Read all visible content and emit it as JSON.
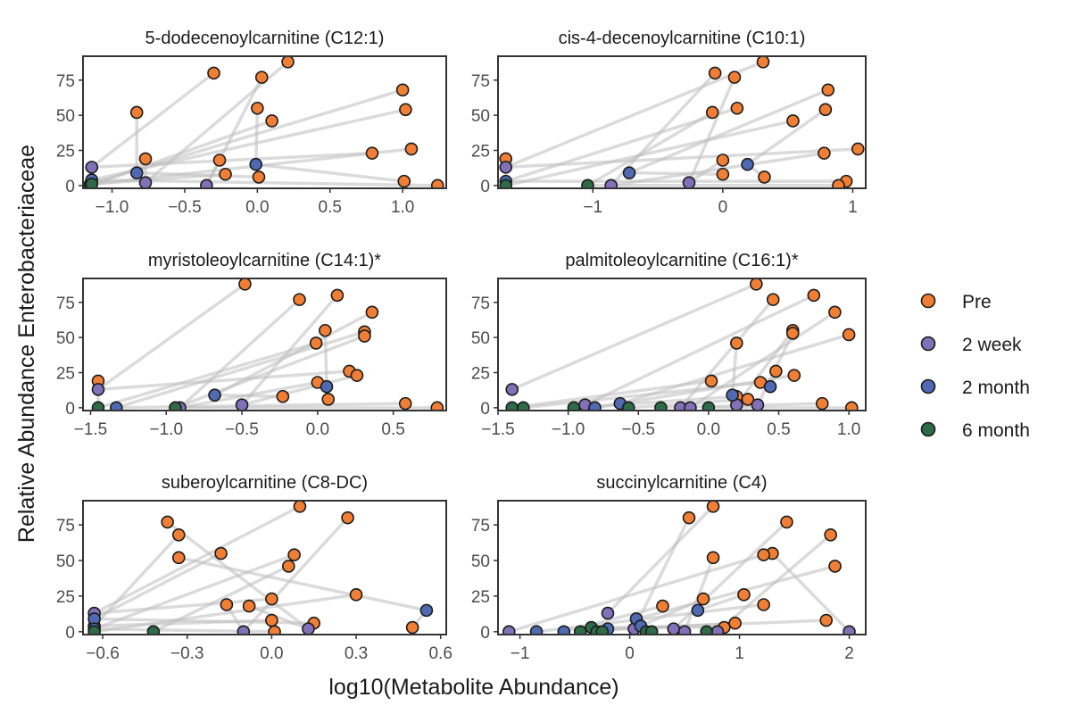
{
  "figure": {
    "xlabel": "log10(Metabolite Abundance)",
    "ylabel": "Relative Abundance Enterobacteriaceae"
  },
  "legend": {
    "placement": "right",
    "items": [
      {
        "label": "Pre",
        "color": "#F07F35"
      },
      {
        "label": "2 week",
        "color": "#8270B8"
      },
      {
        "label": "2 month",
        "color": "#4F6AB3"
      },
      {
        "label": "6 month",
        "color": "#2E6B48"
      }
    ]
  },
  "chart_data": [
    {
      "type": "scatter",
      "title": "5-dodecenoylcarnitine (C12:1)",
      "xlim": [
        -1.2,
        1.3
      ],
      "ylim": [
        -2,
        92
      ],
      "xticks": [
        -1.0,
        -0.5,
        0.0,
        0.5,
        1.0
      ],
      "xtick_labels": [
        "−1.0",
        "−0.5",
        "0.0",
        "0.5",
        "1.0"
      ],
      "yticks": [
        0,
        25,
        50,
        75
      ],
      "points": [
        {
          "x": -0.3,
          "y": 80,
          "group": "Pre"
        },
        {
          "x": 0.21,
          "y": 88,
          "group": "Pre"
        },
        {
          "x": 0.03,
          "y": 77,
          "group": "Pre"
        },
        {
          "x": 1.0,
          "y": 68,
          "group": "Pre"
        },
        {
          "x": -0.83,
          "y": 52,
          "group": "Pre"
        },
        {
          "x": 0.0,
          "y": 55,
          "group": "Pre"
        },
        {
          "x": 1.02,
          "y": 54,
          "group": "Pre"
        },
        {
          "x": 0.1,
          "y": 46,
          "group": "Pre"
        },
        {
          "x": 1.06,
          "y": 26,
          "group": "Pre"
        },
        {
          "x": 0.79,
          "y": 23,
          "group": "Pre"
        },
        {
          "x": -0.77,
          "y": 19,
          "group": "Pre"
        },
        {
          "x": -0.26,
          "y": 18,
          "group": "Pre"
        },
        {
          "x": -0.22,
          "y": 8,
          "group": "Pre"
        },
        {
          "x": 0.01,
          "y": 6,
          "group": "Pre"
        },
        {
          "x": 1.01,
          "y": 3,
          "group": "Pre"
        },
        {
          "x": 1.24,
          "y": 0,
          "group": "Pre"
        },
        {
          "x": -1.14,
          "y": 13,
          "group": "2 week"
        },
        {
          "x": -0.77,
          "y": 2,
          "group": "2 week"
        },
        {
          "x": -0.35,
          "y": 0,
          "group": "2 week"
        },
        {
          "x": -1.15,
          "y": 1,
          "group": "2 week"
        },
        {
          "x": -0.83,
          "y": 9,
          "group": "2 month"
        },
        {
          "x": -0.01,
          "y": 15,
          "group": "2 month"
        },
        {
          "x": -1.14,
          "y": 4,
          "group": "2 month"
        },
        {
          "x": -1.15,
          "y": 0,
          "group": "6 month"
        },
        {
          "x": -1.14,
          "y": 1,
          "group": "6 month"
        }
      ]
    },
    {
      "type": "scatter",
      "title": "cis-4-decenoylcarnitine (C10:1)",
      "xlim": [
        -1.73,
        1.1
      ],
      "ylim": [
        -2,
        92
      ],
      "xticks": [
        -1,
        0,
        1
      ],
      "xtick_labels": [
        "−1",
        "0",
        "1"
      ],
      "yticks": [
        0,
        25,
        50,
        75
      ],
      "points": [
        {
          "x": 0.31,
          "y": 88,
          "group": "Pre"
        },
        {
          "x": -0.06,
          "y": 80,
          "group": "Pre"
        },
        {
          "x": 0.09,
          "y": 77,
          "group": "Pre"
        },
        {
          "x": 0.81,
          "y": 68,
          "group": "Pre"
        },
        {
          "x": 0.79,
          "y": 54,
          "group": "Pre"
        },
        {
          "x": 0.11,
          "y": 55,
          "group": "Pre"
        },
        {
          "x": -0.08,
          "y": 52,
          "group": "Pre"
        },
        {
          "x": 0.54,
          "y": 46,
          "group": "Pre"
        },
        {
          "x": 1.04,
          "y": 26,
          "group": "Pre"
        },
        {
          "x": 0.78,
          "y": 23,
          "group": "Pre"
        },
        {
          "x": 0.0,
          "y": 18,
          "group": "Pre"
        },
        {
          "x": 0.0,
          "y": 8,
          "group": "Pre"
        },
        {
          "x": 0.32,
          "y": 6,
          "group": "Pre"
        },
        {
          "x": 0.95,
          "y": 3,
          "group": "Pre"
        },
        {
          "x": 0.89,
          "y": 0,
          "group": "Pre"
        },
        {
          "x": -1.67,
          "y": 19,
          "group": "Pre"
        },
        {
          "x": -1.67,
          "y": 13,
          "group": "2 week"
        },
        {
          "x": -0.86,
          "y": 0,
          "group": "2 week"
        },
        {
          "x": -0.26,
          "y": 2,
          "group": "2 week"
        },
        {
          "x": -0.72,
          "y": 9,
          "group": "2 month"
        },
        {
          "x": 0.19,
          "y": 15,
          "group": "2 month"
        },
        {
          "x": -1.67,
          "y": 3,
          "group": "2 month"
        },
        {
          "x": -1.04,
          "y": 0,
          "group": "6 month"
        },
        {
          "x": -1.67,
          "y": 0,
          "group": "6 month"
        }
      ]
    },
    {
      "type": "scatter",
      "title": "myristoleoylcarnitine (C14:1)*",
      "xlim": [
        -1.55,
        0.85
      ],
      "ylim": [
        -2,
        92
      ],
      "xticks": [
        -1.5,
        -1.0,
        -0.5,
        0.0,
        0.5
      ],
      "xtick_labels": [
        "−1.5",
        "−1.0",
        "−0.5",
        "0.0",
        "0.5"
      ],
      "yticks": [
        0,
        25,
        50,
        75
      ],
      "points": [
        {
          "x": -0.48,
          "y": 88,
          "group": "Pre"
        },
        {
          "x": 0.13,
          "y": 80,
          "group": "Pre"
        },
        {
          "x": -0.12,
          "y": 77,
          "group": "Pre"
        },
        {
          "x": 0.36,
          "y": 68,
          "group": "Pre"
        },
        {
          "x": 0.05,
          "y": 55,
          "group": "Pre"
        },
        {
          "x": 0.31,
          "y": 54,
          "group": "Pre"
        },
        {
          "x": 0.31,
          "y": 51,
          "group": "Pre"
        },
        {
          "x": -0.01,
          "y": 46,
          "group": "Pre"
        },
        {
          "x": 0.21,
          "y": 26,
          "group": "Pre"
        },
        {
          "x": 0.26,
          "y": 23,
          "group": "Pre"
        },
        {
          "x": 0.0,
          "y": 18,
          "group": "Pre"
        },
        {
          "x": -0.23,
          "y": 8,
          "group": "Pre"
        },
        {
          "x": 0.07,
          "y": 6,
          "group": "Pre"
        },
        {
          "x": 0.58,
          "y": 3,
          "group": "Pre"
        },
        {
          "x": 0.79,
          "y": 0,
          "group": "Pre"
        },
        {
          "x": -1.45,
          "y": 19,
          "group": "Pre"
        },
        {
          "x": -1.45,
          "y": 13,
          "group": "2 week"
        },
        {
          "x": -0.5,
          "y": 2,
          "group": "2 week"
        },
        {
          "x": -0.91,
          "y": 0,
          "group": "2 week"
        },
        {
          "x": -0.68,
          "y": 9,
          "group": "2 month"
        },
        {
          "x": 0.06,
          "y": 15,
          "group": "2 month"
        },
        {
          "x": -1.33,
          "y": 0,
          "group": "2 month"
        },
        {
          "x": -0.94,
          "y": 0,
          "group": "6 month"
        },
        {
          "x": -1.45,
          "y": 0,
          "group": "6 month"
        }
      ]
    },
    {
      "type": "scatter",
      "title": "palmitoleoylcarnitine (C16:1)*",
      "xlim": [
        -1.5,
        1.12
      ],
      "ylim": [
        -2,
        92
      ],
      "xticks": [
        -1.5,
        -1.0,
        -0.5,
        0.0,
        0.5,
        1.0
      ],
      "xtick_labels": [
        "−1.5",
        "−1.0",
        "−0.5",
        "0.0",
        "0.5",
        "1.0"
      ],
      "yticks": [
        0,
        25,
        50,
        75
      ],
      "points": [
        {
          "x": 0.34,
          "y": 88,
          "group": "Pre"
        },
        {
          "x": 0.75,
          "y": 80,
          "group": "Pre"
        },
        {
          "x": 0.46,
          "y": 77,
          "group": "Pre"
        },
        {
          "x": 0.9,
          "y": 68,
          "group": "Pre"
        },
        {
          "x": 0.6,
          "y": 55,
          "group": "Pre"
        },
        {
          "x": 0.6,
          "y": 53,
          "group": "Pre"
        },
        {
          "x": 1.0,
          "y": 52,
          "group": "Pre"
        },
        {
          "x": 0.2,
          "y": 46,
          "group": "Pre"
        },
        {
          "x": 0.48,
          "y": 26,
          "group": "Pre"
        },
        {
          "x": 0.61,
          "y": 23,
          "group": "Pre"
        },
        {
          "x": 0.02,
          "y": 19,
          "group": "Pre"
        },
        {
          "x": 0.37,
          "y": 18,
          "group": "Pre"
        },
        {
          "x": 0.2,
          "y": 8,
          "group": "Pre"
        },
        {
          "x": 0.28,
          "y": 6,
          "group": "Pre"
        },
        {
          "x": 0.81,
          "y": 3,
          "group": "Pre"
        },
        {
          "x": 1.02,
          "y": 0,
          "group": "Pre"
        },
        {
          "x": -1.4,
          "y": 13,
          "group": "2 week"
        },
        {
          "x": -0.88,
          "y": 2,
          "group": "2 week"
        },
        {
          "x": -0.2,
          "y": 0,
          "group": "2 week"
        },
        {
          "x": -0.13,
          "y": 0,
          "group": "2 week"
        },
        {
          "x": 0.2,
          "y": 2,
          "group": "2 week"
        },
        {
          "x": 0.35,
          "y": 2,
          "group": "2 week"
        },
        {
          "x": -0.63,
          "y": 3,
          "group": "2 month"
        },
        {
          "x": 0.17,
          "y": 9,
          "group": "2 month"
        },
        {
          "x": 0.44,
          "y": 15,
          "group": "2 month"
        },
        {
          "x": -0.81,
          "y": 0,
          "group": "2 month"
        },
        {
          "x": -1.4,
          "y": 0,
          "group": "6 month"
        },
        {
          "x": -1.32,
          "y": 0,
          "group": "6 month"
        },
        {
          "x": -0.96,
          "y": 0,
          "group": "6 month"
        },
        {
          "x": -0.57,
          "y": 0,
          "group": "6 month"
        },
        {
          "x": -0.34,
          "y": 0,
          "group": "6 month"
        },
        {
          "x": 0.0,
          "y": 0,
          "group": "6 month"
        }
      ]
    },
    {
      "type": "scatter",
      "title": "suberoylcarnitine (C8-DC)",
      "xlim": [
        -0.67,
        0.62
      ],
      "ylim": [
        -2,
        92
      ],
      "xticks": [
        -0.6,
        -0.3,
        0.0,
        0.3,
        0.6
      ],
      "xtick_labels": [
        "−0.6",
        "−0.3",
        "0.0",
        "0.3",
        "0.6"
      ],
      "yticks": [
        0,
        25,
        50,
        75
      ],
      "points": [
        {
          "x": 0.1,
          "y": 88,
          "group": "Pre"
        },
        {
          "x": 0.27,
          "y": 80,
          "group": "Pre"
        },
        {
          "x": -0.37,
          "y": 77,
          "group": "Pre"
        },
        {
          "x": -0.33,
          "y": 68,
          "group": "Pre"
        },
        {
          "x": -0.18,
          "y": 55,
          "group": "Pre"
        },
        {
          "x": -0.33,
          "y": 52,
          "group": "Pre"
        },
        {
          "x": 0.08,
          "y": 54,
          "group": "Pre"
        },
        {
          "x": 0.06,
          "y": 46,
          "group": "Pre"
        },
        {
          "x": 0.3,
          "y": 26,
          "group": "Pre"
        },
        {
          "x": 0.0,
          "y": 23,
          "group": "Pre"
        },
        {
          "x": -0.16,
          "y": 19,
          "group": "Pre"
        },
        {
          "x": -0.08,
          "y": 18,
          "group": "Pre"
        },
        {
          "x": 0.0,
          "y": 8,
          "group": "Pre"
        },
        {
          "x": 0.15,
          "y": 6,
          "group": "Pre"
        },
        {
          "x": 0.5,
          "y": 3,
          "group": "Pre"
        },
        {
          "x": 0.01,
          "y": 0,
          "group": "Pre"
        },
        {
          "x": -0.63,
          "y": 13,
          "group": "2 week"
        },
        {
          "x": -0.1,
          "y": 0,
          "group": "2 week"
        },
        {
          "x": 0.13,
          "y": 2,
          "group": "2 week"
        },
        {
          "x": -0.63,
          "y": 4,
          "group": "2 week"
        },
        {
          "x": -0.63,
          "y": 9,
          "group": "2 month"
        },
        {
          "x": 0.55,
          "y": 15,
          "group": "2 month"
        },
        {
          "x": -0.63,
          "y": 2,
          "group": "2 month"
        },
        {
          "x": -0.42,
          "y": 0,
          "group": "6 month"
        },
        {
          "x": -0.63,
          "y": 0,
          "group": "6 month"
        }
      ]
    },
    {
      "type": "scatter",
      "title": "succinylcarnitine (C4)",
      "xlim": [
        -1.2,
        2.15
      ],
      "ylim": [
        -2,
        92
      ],
      "xticks": [
        -1,
        0,
        1,
        2
      ],
      "xtick_labels": [
        "−1",
        "0",
        "1",
        "2"
      ],
      "yticks": [
        0,
        25,
        50,
        75
      ],
      "points": [
        {
          "x": 0.76,
          "y": 88,
          "group": "Pre"
        },
        {
          "x": 0.54,
          "y": 80,
          "group": "Pre"
        },
        {
          "x": 1.43,
          "y": 77,
          "group": "Pre"
        },
        {
          "x": 1.83,
          "y": 68,
          "group": "Pre"
        },
        {
          "x": 1.3,
          "y": 55,
          "group": "Pre"
        },
        {
          "x": 1.22,
          "y": 54,
          "group": "Pre"
        },
        {
          "x": 0.76,
          "y": 52,
          "group": "Pre"
        },
        {
          "x": 1.87,
          "y": 46,
          "group": "Pre"
        },
        {
          "x": 1.04,
          "y": 26,
          "group": "Pre"
        },
        {
          "x": 0.67,
          "y": 23,
          "group": "Pre"
        },
        {
          "x": 1.22,
          "y": 19,
          "group": "Pre"
        },
        {
          "x": 0.3,
          "y": 18,
          "group": "Pre"
        },
        {
          "x": 1.79,
          "y": 8,
          "group": "Pre"
        },
        {
          "x": 0.96,
          "y": 6,
          "group": "Pre"
        },
        {
          "x": 0.86,
          "y": 3,
          "group": "Pre"
        },
        {
          "x": -0.2,
          "y": 13,
          "group": "2 week"
        },
        {
          "x": 0.04,
          "y": 2,
          "group": "2 week"
        },
        {
          "x": 0.4,
          "y": 2,
          "group": "2 week"
        },
        {
          "x": 0.8,
          "y": 0,
          "group": "2 week"
        },
        {
          "x": 2.0,
          "y": 0,
          "group": "2 week"
        },
        {
          "x": -1.1,
          "y": 0,
          "group": "2 week"
        },
        {
          "x": 0.5,
          "y": 0,
          "group": "2 week"
        },
        {
          "x": 0.06,
          "y": 9,
          "group": "2 month"
        },
        {
          "x": 0.62,
          "y": 15,
          "group": "2 month"
        },
        {
          "x": 0.1,
          "y": 4,
          "group": "2 month"
        },
        {
          "x": -0.85,
          "y": 0,
          "group": "2 month"
        },
        {
          "x": -0.6,
          "y": 0,
          "group": "2 month"
        },
        {
          "x": -0.2,
          "y": 2,
          "group": "2 month"
        },
        {
          "x": -0.45,
          "y": 0,
          "group": "6 month"
        },
        {
          "x": -0.35,
          "y": 3,
          "group": "6 month"
        },
        {
          "x": -0.3,
          "y": 0,
          "group": "6 month"
        },
        {
          "x": -0.25,
          "y": 0,
          "group": "6 month"
        },
        {
          "x": 0.15,
          "y": 0,
          "group": "6 month"
        },
        {
          "x": 0.2,
          "y": 0,
          "group": "6 month"
        },
        {
          "x": 0.7,
          "y": 0,
          "group": "6 month"
        }
      ]
    }
  ]
}
